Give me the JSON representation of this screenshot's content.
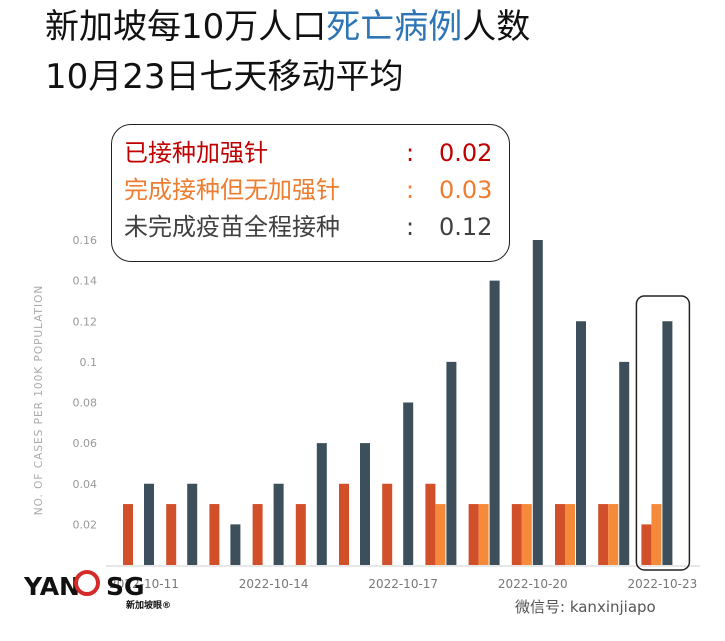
{
  "title": {
    "line1_a": "新加坡每10万人口",
    "line1_highlight": "死亡病例",
    "line1_b": "人数",
    "line2": "10月23日七天移动平均"
  },
  "legend": {
    "booster": {
      "label": "已接种加强针",
      "colon": ":",
      "value": "0.02",
      "color": "#c00000"
    },
    "no_booster": {
      "label": "完成接种但无加强针",
      "colon": ":",
      "value": "0.03",
      "color": "#ed7d31"
    },
    "unvaccinated": {
      "label": "未完成疫苗全程接种",
      "colon": ":",
      "value": "0.12",
      "color": "#404040"
    }
  },
  "watermark": "微信号: kanxinjiapo",
  "logo": {
    "left": "YAN",
    "right": "SG",
    "sub": "新加坡眼®"
  },
  "chart_data": {
    "type": "bar",
    "ylabel": "NO. OF CASES PER 100K POPULATION",
    "ylim": [
      0,
      0.16
    ],
    "yticks": [
      "0.02",
      "0.04",
      "0.06",
      "0.08",
      "0.1",
      "0.12",
      "0.14",
      "0.16"
    ],
    "xticks": [
      {
        "label": "2022-10-11",
        "index": 0
      },
      {
        "label": "2022-10-14",
        "index": 3
      },
      {
        "label": "2022-10-17",
        "index": 6
      },
      {
        "label": "2022-10-20",
        "index": 9
      },
      {
        "label": "2022-10-23",
        "index": 12
      }
    ],
    "categories": [
      "2022-10-11",
      "2022-10-12",
      "2022-10-13",
      "2022-10-14",
      "2022-10-15",
      "2022-10-16",
      "2022-10-17",
      "2022-10-18",
      "2022-10-19",
      "2022-10-20",
      "2022-10-21",
      "2022-10-22",
      "2022-10-23"
    ],
    "series": [
      {
        "name": "已接种加强针",
        "color": "#d1502a",
        "values": [
          0.03,
          0.03,
          0.03,
          0.03,
          0.03,
          0.04,
          0.04,
          0.04,
          0.03,
          0.03,
          0.03,
          0.03,
          0.02
        ]
      },
      {
        "name": "完成接种但无加强针",
        "color": "#f58a3a",
        "values": [
          0,
          0,
          0,
          0,
          0,
          0,
          0,
          0.03,
          0.03,
          0.03,
          0.03,
          0.03,
          0.03
        ]
      },
      {
        "name": "未完成疫苗全程接种",
        "color": "#3c4f5a",
        "values": [
          0.04,
          0.04,
          0.02,
          0.04,
          0.06,
          0.06,
          0.08,
          0.1,
          0.14,
          0.16,
          0.12,
          0.1,
          0.12
        ]
      }
    ],
    "highlight_category": "2022-10-23"
  }
}
